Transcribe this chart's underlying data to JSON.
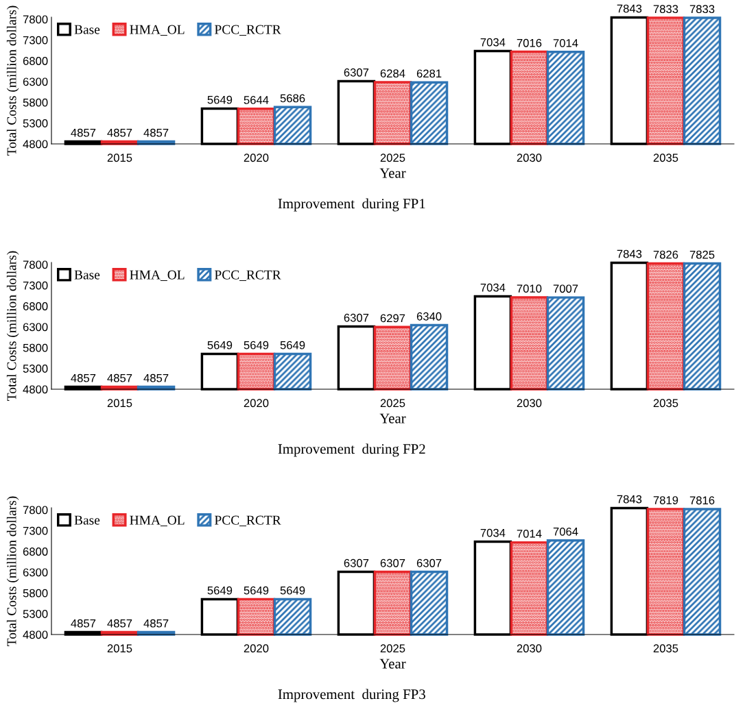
{
  "chart_data": [
    {
      "type": "bar",
      "title": "Improvement  during FP1",
      "xlabel": "Year",
      "ylabel": "Total Costs (million dollars)",
      "categories": [
        "2015",
        "2020",
        "2025",
        "2030",
        "2035"
      ],
      "ylim": [
        4800,
        7850
      ],
      "yticks": [
        4800,
        5300,
        5800,
        6300,
        6800,
        7300,
        7800
      ],
      "legend": "top left",
      "data_labels": true,
      "grid": false,
      "series": [
        {
          "name": "Base",
          "color": "#000000",
          "values": [
            4857,
            5649,
            6307,
            7034,
            7843
          ]
        },
        {
          "name": "HMA_OL",
          "color": "#e8262a",
          "values": [
            4857,
            5644,
            6284,
            7016,
            7833
          ]
        },
        {
          "name": "PCC_RCTR",
          "color": "#2f75b5",
          "values": [
            4857,
            5686,
            6281,
            7014,
            7833
          ]
        }
      ]
    },
    {
      "type": "bar",
      "title": "Improvement  during FP2",
      "xlabel": "Year",
      "ylabel": "Total Costs (million dollars)",
      "categories": [
        "2015",
        "2020",
        "2025",
        "2030",
        "2035"
      ],
      "ylim": [
        4800,
        7850
      ],
      "yticks": [
        4800,
        5300,
        5800,
        6300,
        6800,
        7300,
        7800
      ],
      "legend": "top left",
      "data_labels": true,
      "grid": false,
      "series": [
        {
          "name": "Base",
          "color": "#000000",
          "values": [
            4857,
            5649,
            6307,
            7034,
            7843
          ]
        },
        {
          "name": "HMA_OL",
          "color": "#e8262a",
          "values": [
            4857,
            5649,
            6297,
            7010,
            7826
          ]
        },
        {
          "name": "PCC_RCTR",
          "color": "#2f75b5",
          "values": [
            4857,
            5649,
            6340,
            7007,
            7825
          ]
        }
      ]
    },
    {
      "type": "bar",
      "title": "Improvement  during FP3",
      "xlabel": "Year",
      "ylabel": "Total Costs (million dollars)",
      "categories": [
        "2015",
        "2020",
        "2025",
        "2030",
        "2035"
      ],
      "ylim": [
        4800,
        7850
      ],
      "yticks": [
        4800,
        5300,
        5800,
        6300,
        6800,
        7300,
        7800
      ],
      "legend": "top left",
      "data_labels": true,
      "grid": false,
      "series": [
        {
          "name": "Base",
          "color": "#000000",
          "values": [
            4857,
            5649,
            6307,
            7034,
            7843
          ]
        },
        {
          "name": "HMA_OL",
          "color": "#e8262a",
          "values": [
            4857,
            5649,
            6307,
            7014,
            7819
          ]
        },
        {
          "name": "PCC_RCTR",
          "color": "#2f75b5",
          "values": [
            4857,
            5649,
            6307,
            7064,
            7816
          ]
        }
      ]
    }
  ]
}
